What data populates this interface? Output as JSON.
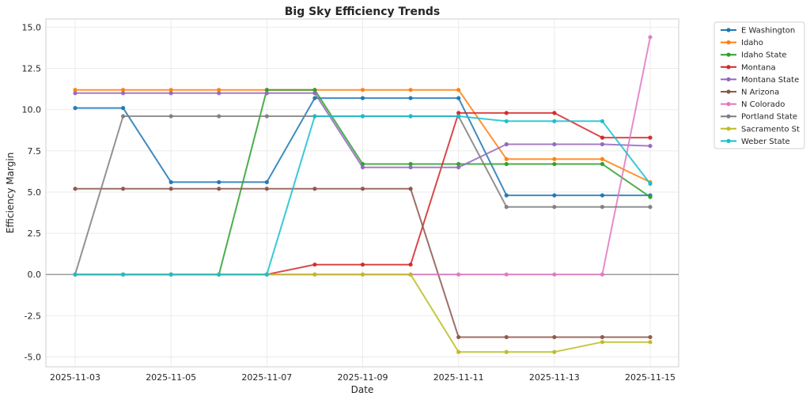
{
  "chart_data": {
    "type": "line",
    "title": "Big Sky Efficiency Trends",
    "xlabel": "Date",
    "ylabel": "Efficiency Margin",
    "x": [
      "2025-11-03",
      "2025-11-04",
      "2025-11-05",
      "2025-11-06",
      "2025-11-07",
      "2025-11-08",
      "2025-11-09",
      "2025-11-10",
      "2025-11-11",
      "2025-11-12",
      "2025-11-13",
      "2025-11-14",
      "2025-11-15"
    ],
    "xticks": [
      "2025-11-03",
      "2025-11-05",
      "2025-11-07",
      "2025-11-09",
      "2025-11-11",
      "2025-11-13",
      "2025-11-15"
    ],
    "yticks": [
      "15.0",
      "12.5",
      "10.0",
      "7.5",
      "5.0",
      "2.5",
      "0.0",
      "-2.5",
      "-5.0"
    ],
    "ylim": [
      -5.6,
      15.5
    ],
    "grid": true,
    "zero_line": true,
    "legend_position": "outside-top-right",
    "series": [
      {
        "name": "E Washington",
        "color": "#1f77b4",
        "values": [
          10.1,
          10.1,
          5.6,
          5.6,
          5.6,
          10.7,
          10.7,
          10.7,
          10.7,
          4.8,
          4.8,
          4.8,
          4.8
        ]
      },
      {
        "name": "Idaho",
        "color": "#ff7f0e",
        "values": [
          11.2,
          11.2,
          11.2,
          11.2,
          11.2,
          11.2,
          11.2,
          11.2,
          11.2,
          7.0,
          7.0,
          7.0,
          5.6
        ]
      },
      {
        "name": "Idaho State",
        "color": "#2ca02c",
        "values": [
          0,
          0,
          0,
          0,
          11.2,
          11.2,
          6.7,
          6.7,
          6.7,
          6.7,
          6.7,
          6.7,
          4.7
        ]
      },
      {
        "name": "Montana",
        "color": "#d62728",
        "values": [
          0,
          0,
          0,
          0,
          0,
          0.6,
          0.6,
          0.6,
          9.8,
          9.8,
          9.8,
          8.3,
          8.3
        ]
      },
      {
        "name": "Montana State",
        "color": "#9467bd",
        "values": [
          11.0,
          11.0,
          11.0,
          11.0,
          11.0,
          11.0,
          6.5,
          6.5,
          6.5,
          7.9,
          7.9,
          7.9,
          7.8
        ]
      },
      {
        "name": "N Arizona",
        "color": "#8c564b",
        "values": [
          5.2,
          5.2,
          5.2,
          5.2,
          5.2,
          5.2,
          5.2,
          5.2,
          -3.8,
          -3.8,
          -3.8,
          -3.8,
          -3.8
        ]
      },
      {
        "name": "N Colorado",
        "color": "#e377c2",
        "values": [
          0,
          0,
          0,
          0,
          0,
          0,
          0,
          0,
          0,
          0,
          0,
          0,
          14.4
        ]
      },
      {
        "name": "Portland State",
        "color": "#7f7f7f",
        "values": [
          0,
          9.6,
          9.6,
          9.6,
          9.6,
          9.6,
          9.6,
          9.6,
          9.6,
          4.1,
          4.1,
          4.1,
          4.1
        ]
      },
      {
        "name": "Sacramento St",
        "color": "#bcbd22",
        "values": [
          0,
          0,
          0,
          0,
          0,
          0,
          0,
          0,
          -4.7,
          -4.7,
          -4.7,
          -4.1,
          -4.1
        ]
      },
      {
        "name": "Weber State",
        "color": "#17becf",
        "values": [
          0,
          0,
          0,
          0,
          0,
          9.6,
          9.6,
          9.6,
          9.6,
          9.3,
          9.3,
          9.3,
          5.5
        ]
      }
    ]
  }
}
